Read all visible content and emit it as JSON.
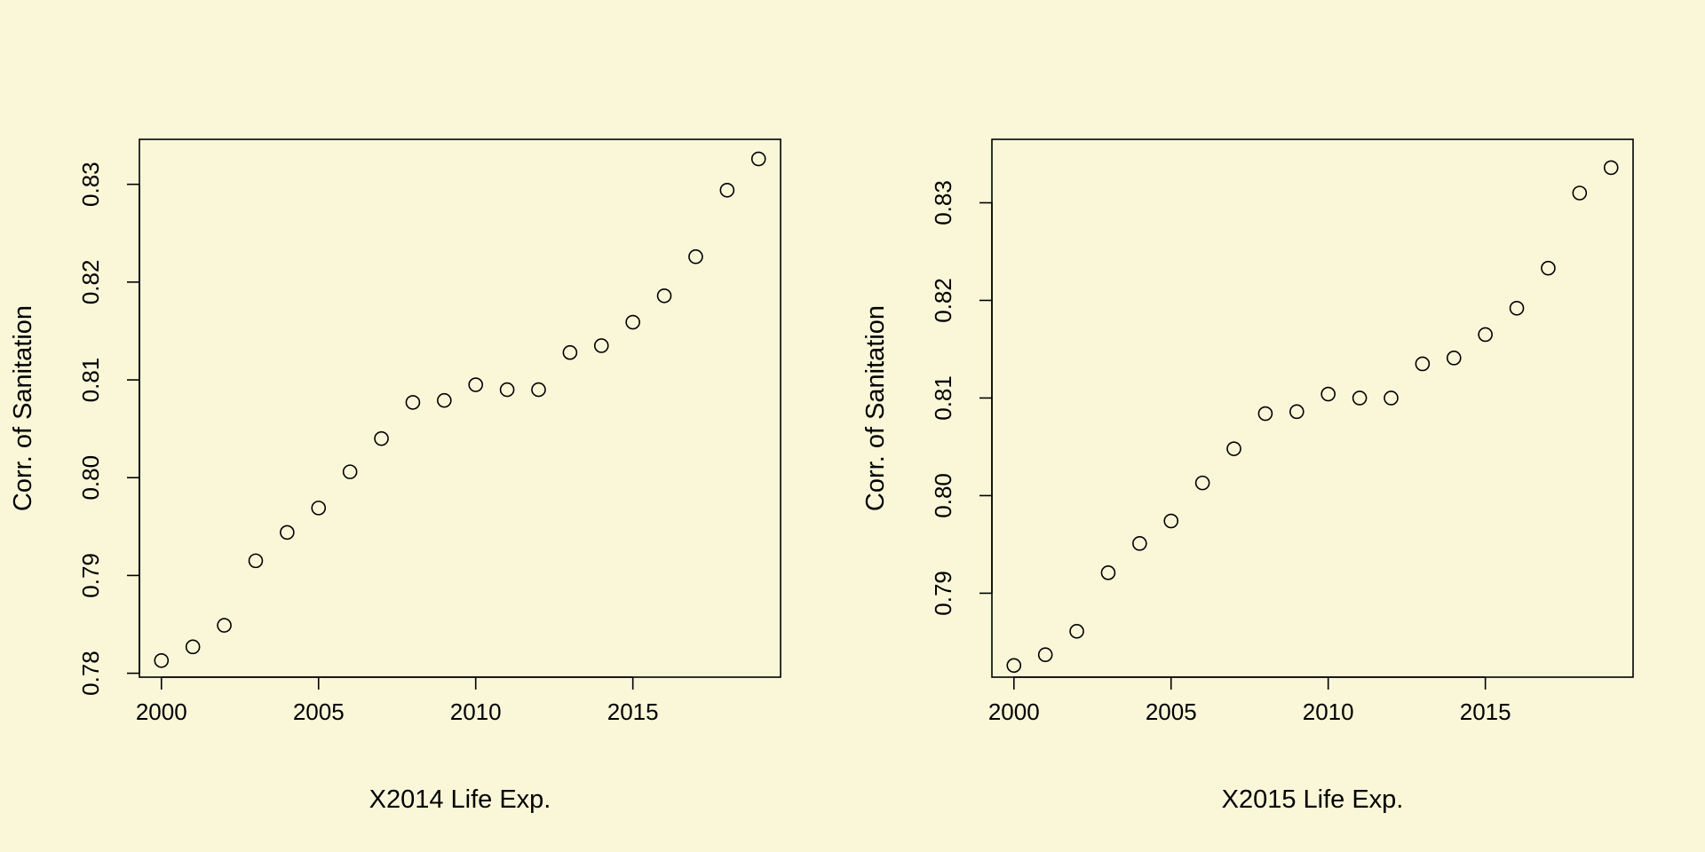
{
  "background_color": "#faf7d9",
  "chart_data": [
    {
      "type": "scatter",
      "title": "",
      "xlabel": "X2014 Life Exp.",
      "ylabel": "Corr. of Sanitation",
      "xlim": [
        1999.3,
        2019.7
      ],
      "ylim": [
        0.7796,
        0.8346
      ],
      "xticks": [
        2000,
        2005,
        2010,
        2015
      ],
      "xtick_labels": [
        "2000",
        "2005",
        "2010",
        "2015"
      ],
      "yticks": [
        0.78,
        0.79,
        0.8,
        0.81,
        0.82,
        0.83
      ],
      "ytick_labels": [
        "0.78",
        "0.79",
        "0.80",
        "0.81",
        "0.82",
        "0.83"
      ],
      "grid": false,
      "legend": "none",
      "marker": "open-circle",
      "x": [
        2000,
        2001,
        2002,
        2003,
        2004,
        2005,
        2006,
        2007,
        2008,
        2009,
        2010,
        2011,
        2012,
        2013,
        2014,
        2015,
        2016,
        2017,
        2018,
        2019
      ],
      "y": [
        0.7813,
        0.7827,
        0.7849,
        0.7915,
        0.7944,
        0.7969,
        0.8006,
        0.804,
        0.8077,
        0.8079,
        0.8095,
        0.809,
        0.809,
        0.8128,
        0.8135,
        0.8159,
        0.8186,
        0.8226,
        0.8294,
        0.8326
      ]
    },
    {
      "type": "scatter",
      "title": "",
      "xlabel": "X2015 Life Exp.",
      "ylabel": "Corr. of Sanitation",
      "xlim": [
        1999.3,
        2019.7
      ],
      "ylim": [
        0.7814,
        0.8365
      ],
      "xticks": [
        2000,
        2005,
        2010,
        2015
      ],
      "xtick_labels": [
        "2000",
        "2005",
        "2010",
        "2015"
      ],
      "yticks": [
        0.79,
        0.8,
        0.81,
        0.82,
        0.83
      ],
      "ytick_labels": [
        "0.79",
        "0.80",
        "0.81",
        "0.82",
        "0.83"
      ],
      "grid": false,
      "legend": "none",
      "marker": "open-circle",
      "x": [
        2000,
        2001,
        2002,
        2003,
        2004,
        2005,
        2006,
        2007,
        2008,
        2009,
        2010,
        2011,
        2012,
        2013,
        2014,
        2015,
        2016,
        2017,
        2018,
        2019
      ],
      "y": [
        0.7826,
        0.7837,
        0.7861,
        0.7921,
        0.7951,
        0.7974,
        0.8013,
        0.8048,
        0.8084,
        0.8086,
        0.8104,
        0.81,
        0.81,
        0.8135,
        0.8141,
        0.8165,
        0.8192,
        0.8233,
        0.831,
        0.8336
      ]
    }
  ]
}
